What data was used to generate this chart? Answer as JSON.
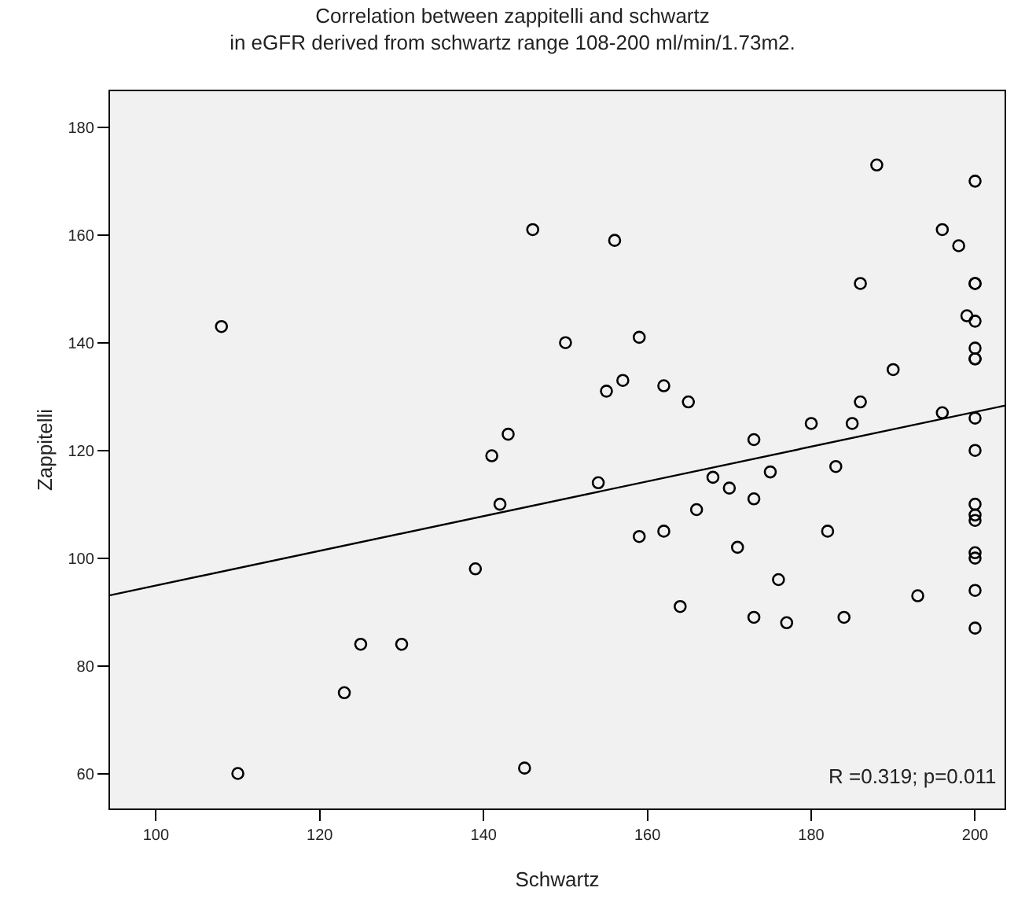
{
  "chart_data": {
    "type": "scatter",
    "title": "Correlation between zappitelli and schwartz",
    "subtitle": "in eGFR derived from schwartz range 108-200 ml/min/1.73m2.",
    "xlabel": "Schwartz",
    "ylabel": "Zappitelli",
    "marker": "circle",
    "grid": false,
    "xlim": [
      94.4,
      203.6
    ],
    "ylim": [
      53.5,
      186.7
    ],
    "xticks": [
      100,
      120,
      140,
      160,
      180,
      200
    ],
    "yticks": [
      60,
      80,
      100,
      120,
      140,
      160,
      180
    ],
    "annotations": [
      "R =0.319; p=0.011"
    ],
    "series": [
      {
        "color": "#000000",
        "x": [
          146,
          108,
          143,
          141,
          142,
          139,
          125,
          130,
          123,
          110,
          145,
          156,
          150,
          159,
          155,
          157,
          162,
          165,
          154,
          159,
          162,
          164,
          166,
          168,
          170,
          173,
          173,
          173,
          171,
          175,
          176,
          177,
          180,
          182,
          183,
          184,
          185,
          186,
          186,
          188,
          190,
          193,
          196,
          196,
          198,
          199,
          200,
          200,
          200,
          200,
          200,
          200,
          200,
          200,
          200,
          200,
          200,
          200,
          200,
          200,
          200,
          200
        ],
        "values": [
          161,
          143,
          123,
          119,
          110,
          98,
          84,
          84,
          75,
          60,
          61,
          159,
          140,
          141,
          131,
          133,
          132,
          129,
          114,
          104,
          105,
          91,
          109,
          115,
          113,
          122,
          111,
          89,
          102,
          116,
          96,
          88,
          125,
          105,
          117,
          89,
          125,
          129,
          151,
          173,
          135,
          93,
          161,
          127,
          158,
          145,
          170,
          151,
          151,
          144,
          139,
          137,
          137,
          126,
          120,
          110,
          108,
          107,
          101,
          100,
          94,
          87
        ]
      },
      {
        "type": "line",
        "color": "#000000",
        "marker": "none",
        "line_style": "solid",
        "x": [
          94.4,
          203.6
        ],
        "values": [
          93.1,
          128.3
        ]
      }
    ]
  }
}
